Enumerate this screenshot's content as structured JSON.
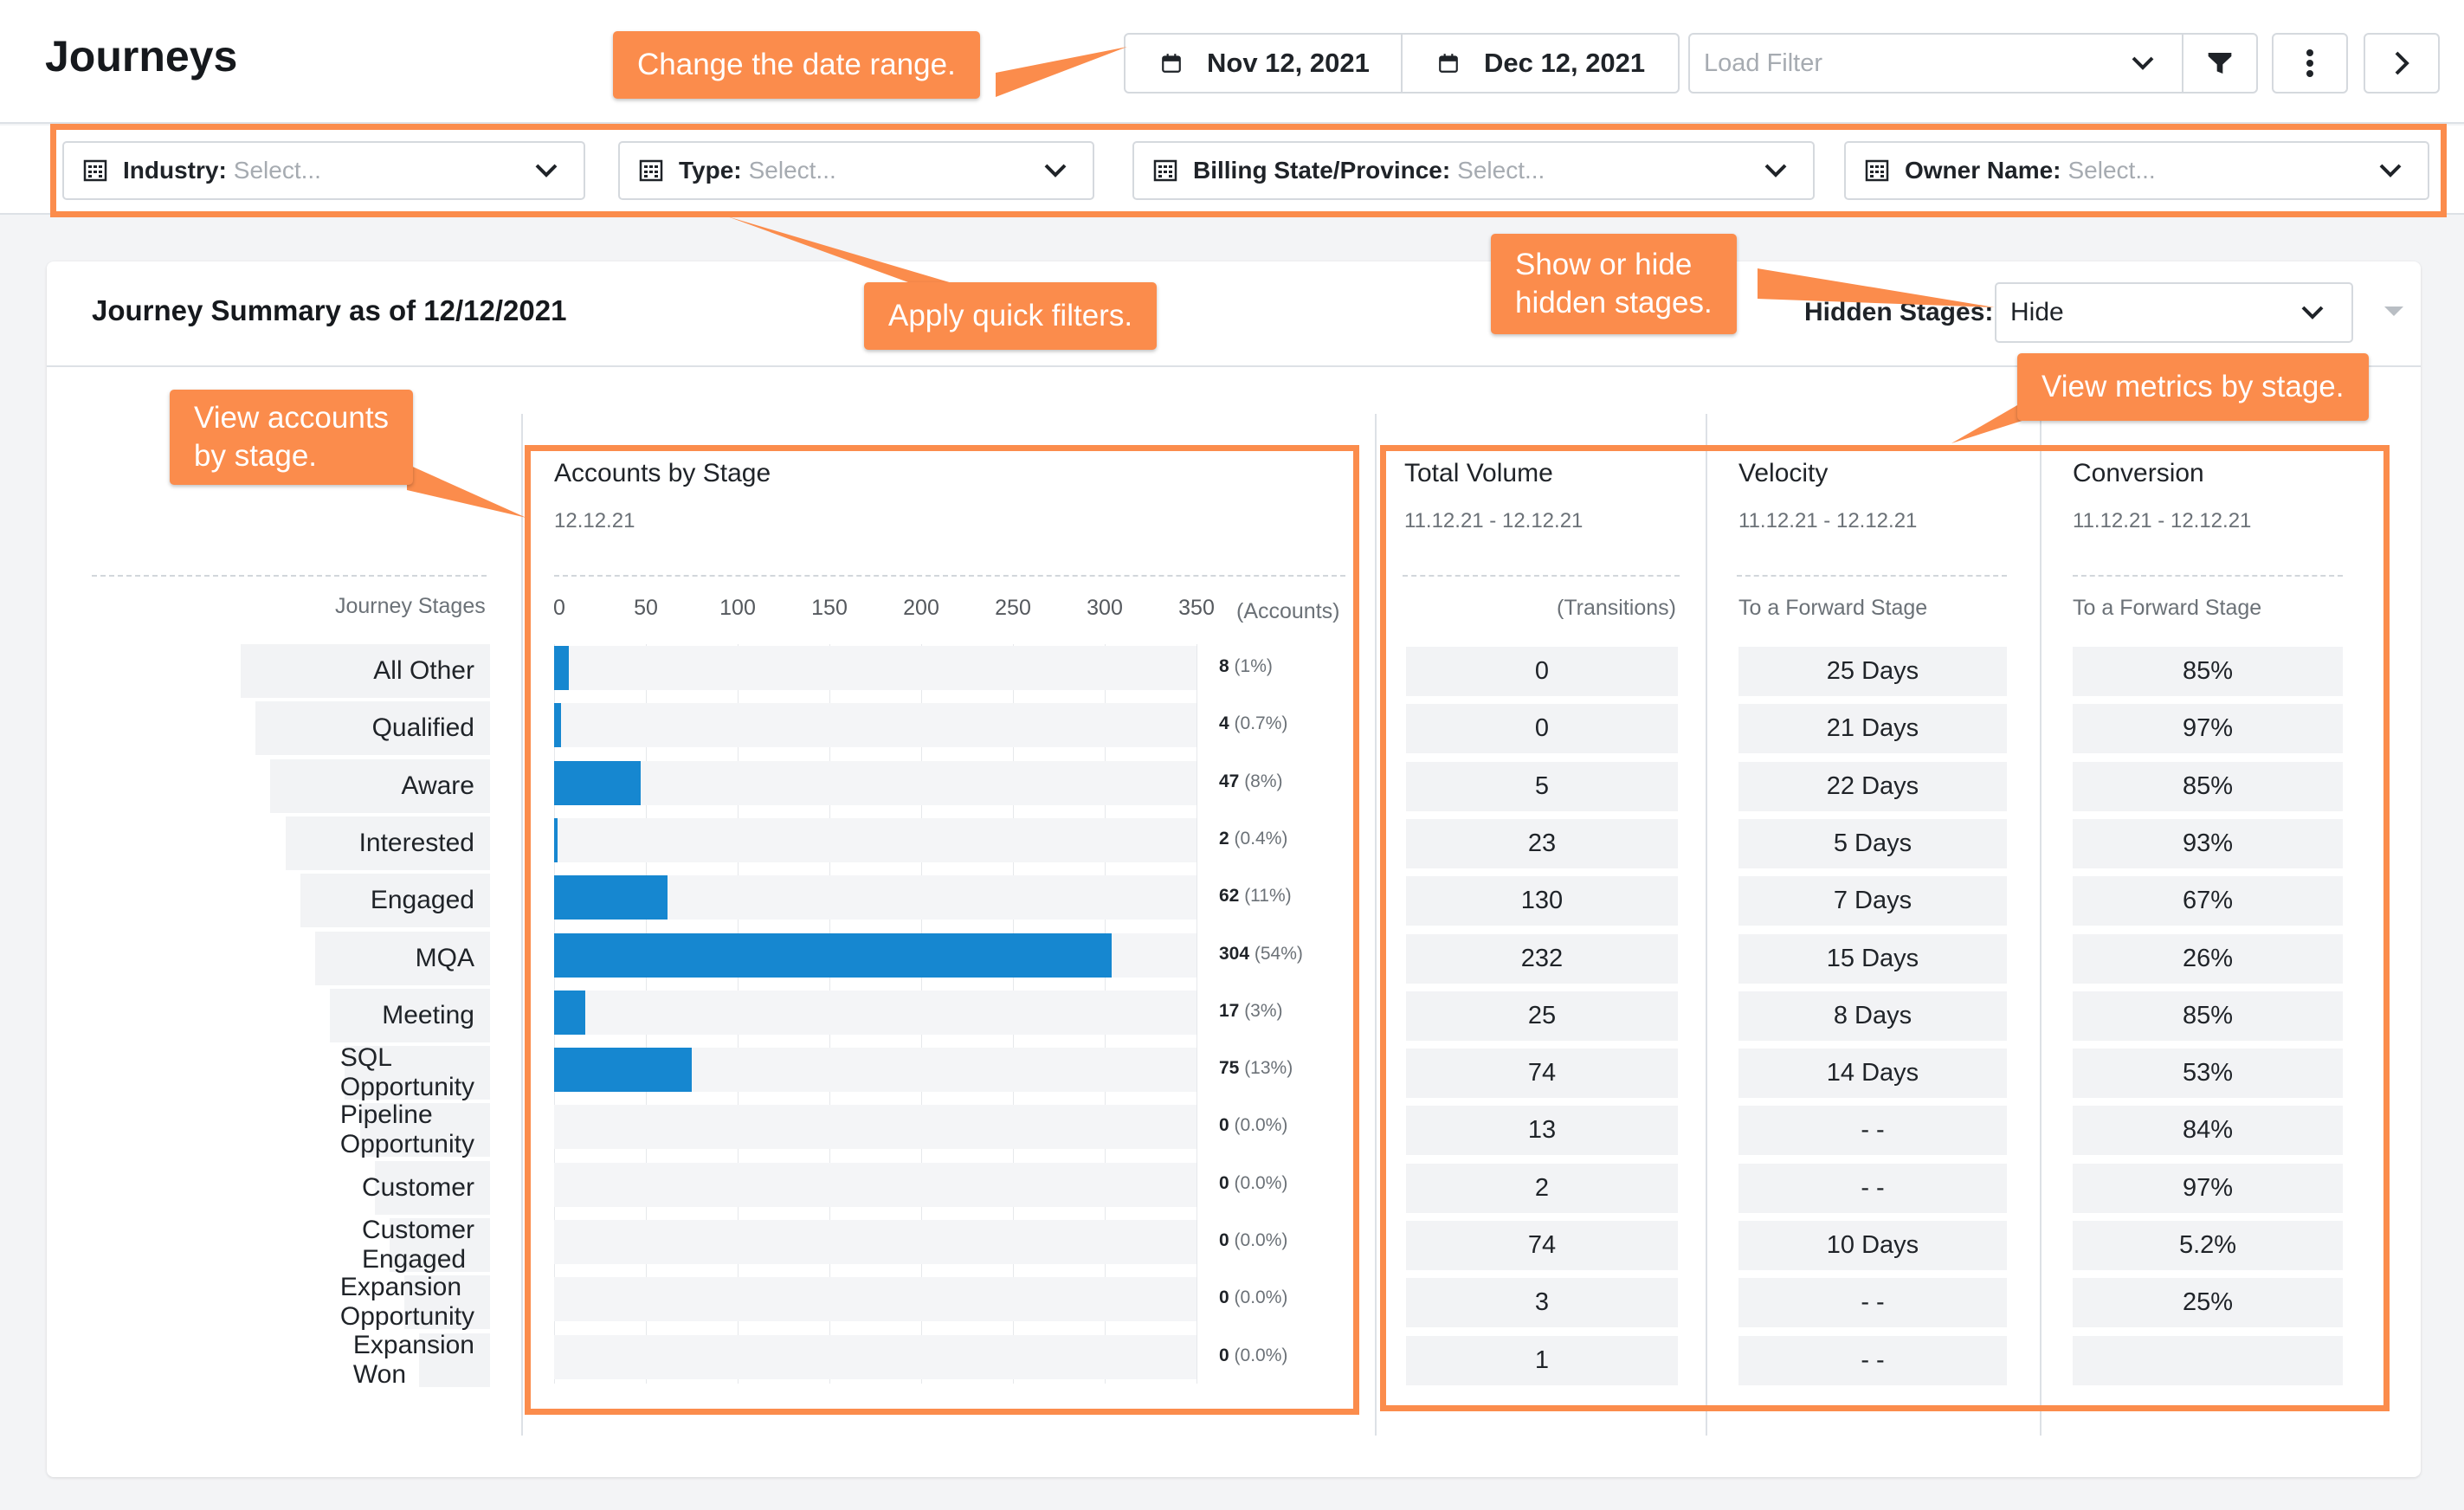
{
  "header": {
    "title": "Journeys",
    "start_date": "Nov 12, 2021",
    "end_date": "Dec 12, 2021",
    "load_filter_placeholder": "Load Filter"
  },
  "quick_filters": [
    {
      "label": "Industry:",
      "placeholder": "Select..."
    },
    {
      "label": "Type:",
      "placeholder": "Select..."
    },
    {
      "label": "Billing State/Province:",
      "placeholder": "Select..."
    },
    {
      "label": "Owner Name:",
      "placeholder": "Select..."
    }
  ],
  "summary": {
    "title": "Journey Summary as of 12/12/2021",
    "hidden_stages_label": "Hidden Stages:",
    "hidden_stages_value": "Hide"
  },
  "stages_header": "Journey Stages",
  "accounts_section": {
    "title": "Accounts by Stage",
    "date": "12.12.21",
    "unit_label": "(Accounts)"
  },
  "total_volume": {
    "title": "Total Volume",
    "date_range": "11.12.21 - 12.12.21",
    "col_label": "(Transitions)"
  },
  "velocity": {
    "title": "Velocity",
    "date_range": "11.12.21 - 12.12.21",
    "col_label": "To a Forward Stage"
  },
  "conversion": {
    "title": "Conversion",
    "date_range": "11.12.21 - 12.12.21",
    "col_label": "To a Forward Stage"
  },
  "chart_data": {
    "type": "bar",
    "title": "Accounts by Stage",
    "xlabel": "(Accounts)",
    "xlim": [
      0,
      350
    ],
    "ticks": [
      "0",
      "50",
      "100",
      "150",
      "200",
      "250",
      "300",
      "350"
    ],
    "categories": [
      "All Other",
      "Qualified",
      "Aware",
      "Interested",
      "Engaged",
      "MQA",
      "Meeting",
      "SQL Opportunity",
      "Pipeline Opportunity",
      "Customer",
      "Customer Engaged",
      "Expansion Opportunity",
      "Expansion Won"
    ],
    "values": [
      8,
      4,
      47,
      2,
      62,
      304,
      17,
      75,
      0,
      0,
      0,
      0,
      0
    ],
    "value_labels": [
      "8",
      "4",
      "47",
      "2",
      "62",
      "304",
      "17",
      "75",
      "0",
      "0",
      "0",
      "0",
      "0"
    ],
    "percent_labels": [
      "(1%)",
      "(0.7%)",
      "(8%)",
      "(0.4%)",
      "(11%)",
      "(54%)",
      "(3%)",
      "(13%)",
      "(0.0%)",
      "(0.0%)",
      "(0.0%)",
      "(0.0%)",
      "(0.0%)"
    ],
    "grid": true,
    "color": "#1687d0"
  },
  "metrics": {
    "total_volume": [
      "0",
      "0",
      "5",
      "23",
      "130",
      "232",
      "25",
      "74",
      "13",
      "2",
      "74",
      "3",
      "1"
    ],
    "velocity": [
      "25 Days",
      "21 Days",
      "22 Days",
      "5 Days",
      "7 Days",
      "15 Days",
      "8 Days",
      "14 Days",
      "- -",
      "- -",
      "10 Days",
      "- -",
      "- -"
    ],
    "conversion": [
      "85%",
      "97%",
      "85%",
      "93%",
      "67%",
      "26%",
      "85%",
      "53%",
      "84%",
      "97%",
      "5.2%",
      "25%",
      ""
    ]
  },
  "annotations": {
    "date_range": "Change the date range.",
    "quick_filters": "Apply quick filters.",
    "hidden_stages_1": "Show or hide",
    "hidden_stages_2": "hidden stages.",
    "accounts_1": "View accounts",
    "accounts_2": "by stage.",
    "metrics": "View metrics by stage."
  },
  "colors": {
    "accent_orange": "#fb8c4c",
    "bar_blue": "#1687d0"
  }
}
